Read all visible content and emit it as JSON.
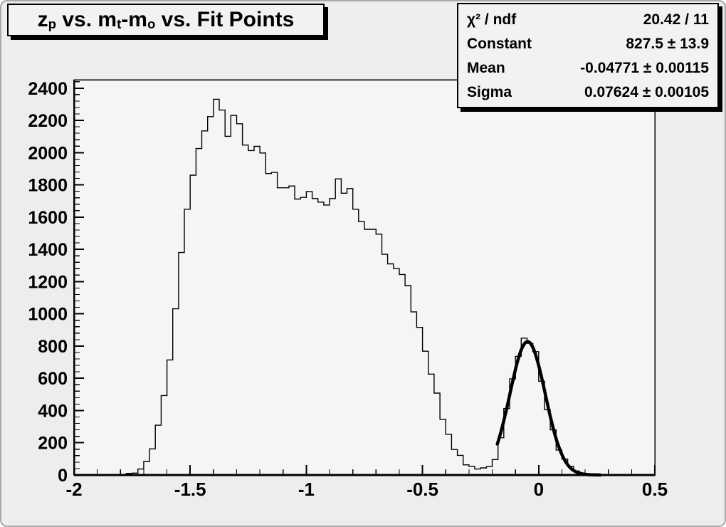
{
  "title": {
    "plain": "z_p vs. m_t-m_o vs. Fit Points",
    "segments": [
      {
        "text": "z"
      },
      {
        "sub": "p"
      },
      {
        "text": " vs. m"
      },
      {
        "sub": "t"
      },
      {
        "text": "-m"
      },
      {
        "sub": "o"
      },
      {
        "text": " vs. Fit Points"
      }
    ]
  },
  "stats_box": {
    "rows": [
      {
        "label": "χ² / ndf",
        "value": "20.42 / 11"
      },
      {
        "label": "Constant",
        "value": "827.5 ± 13.9"
      },
      {
        "label": "Mean",
        "value": "-0.04771 ± 0.00115"
      },
      {
        "label": "Sigma",
        "value": "0.07624 ± 0.00105"
      }
    ]
  },
  "colors": {
    "canvas_bg": "#ededed",
    "frame_bg": "#f5f5f5",
    "line": "#000000",
    "box_bg": "#f2f2f2",
    "shadow": "#000000"
  },
  "chart_data": {
    "type": "bar",
    "subtype": "root-histogram-outline",
    "title": "z_p vs. m_t-m_o vs. Fit Points",
    "xlabel": "",
    "ylabel": "",
    "xlim": [
      -2.0,
      0.5
    ],
    "ylim": [
      0,
      2452
    ],
    "bin_width": 0.025,
    "bin_start": -2.0,
    "grid": false,
    "legend_position": "none",
    "x_tick_values": [
      -2,
      -1.5,
      -1,
      -0.5,
      0,
      0.5
    ],
    "x_tick_labels": [
      "-2",
      "-1.5",
      "-1",
      "-0.5",
      "0",
      "0.5"
    ],
    "x_minor_step": 0.1,
    "y_tick_values": [
      0,
      200,
      400,
      600,
      800,
      1000,
      1200,
      1400,
      1600,
      1800,
      2000,
      2200,
      2400
    ],
    "y_tick_labels": [
      "0",
      "200",
      "400",
      "600",
      "800",
      "1000",
      "1200",
      "1400",
      "1600",
      "1800",
      "2000",
      "2200",
      "2400"
    ],
    "y_minor_step": 40,
    "values": [
      0,
      0,
      0,
      0,
      0,
      0,
      0,
      0,
      0,
      10,
      12,
      37,
      84,
      162,
      309,
      493,
      714,
      1031,
      1380,
      1649,
      1860,
      2025,
      2135,
      2223,
      2331,
      2264,
      2101,
      2231,
      2179,
      2047,
      2013,
      2039,
      1998,
      1870,
      1877,
      1782,
      1782,
      1793,
      1712,
      1722,
      1759,
      1715,
      1693,
      1675,
      1715,
      1837,
      1748,
      1777,
      1649,
      1572,
      1524,
      1524,
      1494,
      1369,
      1310,
      1281,
      1244,
      1175,
      1012,
      916,
      768,
      626,
      508,
      346,
      253,
      158,
      122,
      63,
      54,
      37,
      44,
      52,
      96,
      231,
      412,
      596,
      736,
      849,
      817,
      765,
      582,
      405,
      280,
      155,
      99,
      54,
      25,
      12,
      8,
      3,
      1,
      0,
      0,
      0,
      0,
      0,
      0,
      0,
      0,
      0
    ],
    "fit": {
      "type": "gaussian",
      "chi2": 20.42,
      "ndf": 11,
      "constant": 827.5,
      "constant_err": 13.9,
      "mean": -0.04771,
      "mean_err": 0.00115,
      "sigma": 0.07624,
      "sigma_err": 0.00105,
      "draw_from": -0.178,
      "draw_to": 0.265,
      "line_width": 4.5
    }
  }
}
